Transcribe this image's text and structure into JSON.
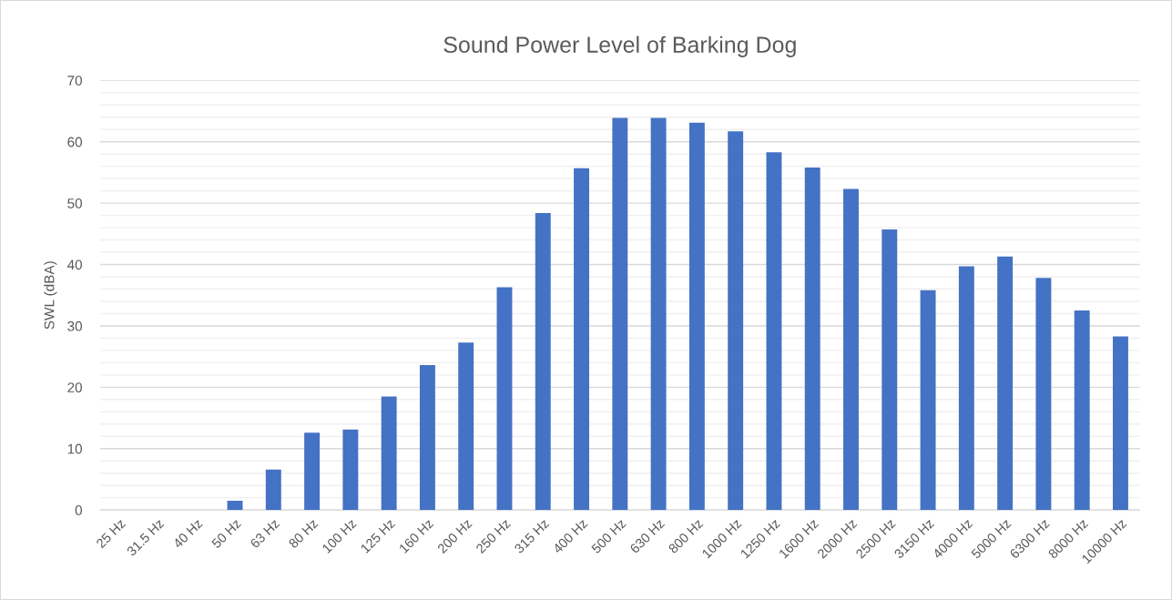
{
  "chart_data": {
    "type": "bar",
    "title": "Sound Power Level of Barking Dog",
    "ylabel": "SWL (dBA)",
    "categories": [
      "25 Hz",
      "31.5 Hz",
      "40 Hz",
      "50 Hz",
      "63 Hz",
      "80 Hz",
      "100 Hz",
      "125 Hz",
      "160 Hz",
      "200 Hz",
      "250 Hz",
      "315 Hz",
      "400 Hz",
      "500 Hz",
      "630 Hz",
      "800 Hz",
      "1000 Hz",
      "1250 Hz",
      "1600 Hz",
      "2000 Hz",
      "2500 Hz",
      "3150 Hz",
      "4000 Hz",
      "5000 Hz",
      "6300 Hz",
      "8000 Hz",
      "10000 Hz"
    ],
    "values": [
      0,
      0,
      0,
      1.5,
      6.6,
      12.6,
      13.1,
      18.5,
      23.6,
      27.3,
      36.3,
      48.4,
      55.7,
      63.9,
      63.9,
      63.1,
      61.7,
      58.3,
      55.8,
      52.3,
      45.7,
      35.8,
      39.7,
      41.3,
      37.8,
      32.5,
      28.3
    ],
    "color": "#4472c4",
    "ylim": [
      0,
      70
    ],
    "yticks": [
      0,
      {
        "value": 2,
        "label": null
      },
      {
        "value": 4,
        "label": null
      },
      {
        "value": 6,
        "label": null
      },
      {
        "value": 8,
        "label": null
      },
      10,
      {
        "value": 12,
        "label": null
      },
      {
        "value": 14,
        "label": null
      },
      {
        "value": 16,
        "label": null
      },
      {
        "value": 18,
        "label": null
      },
      20,
      {
        "value": 22,
        "label": null
      },
      {
        "value": 24,
        "label": null
      },
      {
        "value": 26,
        "label": null
      },
      {
        "value": 28,
        "label": null
      },
      30,
      {
        "value": 32,
        "label": null
      },
      {
        "value": 34,
        "label": null
      },
      {
        "value": 36,
        "label": null
      },
      {
        "value": 38,
        "label": null
      },
      40,
      {
        "value": 42,
        "label": null
      },
      {
        "value": 44,
        "label": null
      },
      {
        "value": 46,
        "label": null
      },
      {
        "value": 48,
        "label": null
      },
      50,
      {
        "value": 52,
        "label": null
      },
      {
        "value": 54,
        "label": null
      },
      {
        "value": 56,
        "label": null
      },
      {
        "value": 58,
        "label": null
      },
      60,
      {
        "value": 62,
        "label": null
      },
      {
        "value": 64,
        "label": null
      },
      {
        "value": 66,
        "label": null
      },
      {
        "value": 68,
        "label": null
      },
      70
    ],
    "grid": "y"
  }
}
